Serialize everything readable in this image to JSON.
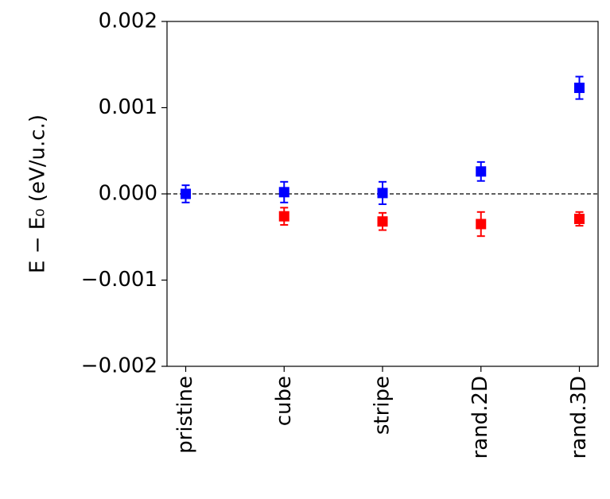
{
  "chart_data": {
    "type": "scatter",
    "ylabel": "E − E₀ (eV/u.c.)",
    "categories": [
      "pristine",
      "cube",
      "stripe",
      "rand.2D",
      "rand.3D"
    ],
    "series": [
      {
        "color": "#0000ff",
        "values": [
          0.0,
          2e-05,
          1e-05,
          0.00026,
          0.00123
        ],
        "errors": [
          0.0001,
          0.00012,
          0.00013,
          0.00011,
          0.00013
        ]
      },
      {
        "color": "#ff0000",
        "values": [
          null,
          -0.00026,
          -0.00032,
          -0.00035,
          -0.00029
        ],
        "errors": [
          null,
          0.0001,
          0.0001,
          0.00014,
          8e-05
        ]
      }
    ],
    "ylim": [
      -0.002,
      0.002
    ],
    "yticks": [
      {
        "value": -0.002,
        "label": "−0.002"
      },
      {
        "value": -0.001,
        "label": "−0.001"
      },
      {
        "value": 0,
        "label": "0.000"
      },
      0.001,
      0.002
    ],
    "hline": 0
  }
}
